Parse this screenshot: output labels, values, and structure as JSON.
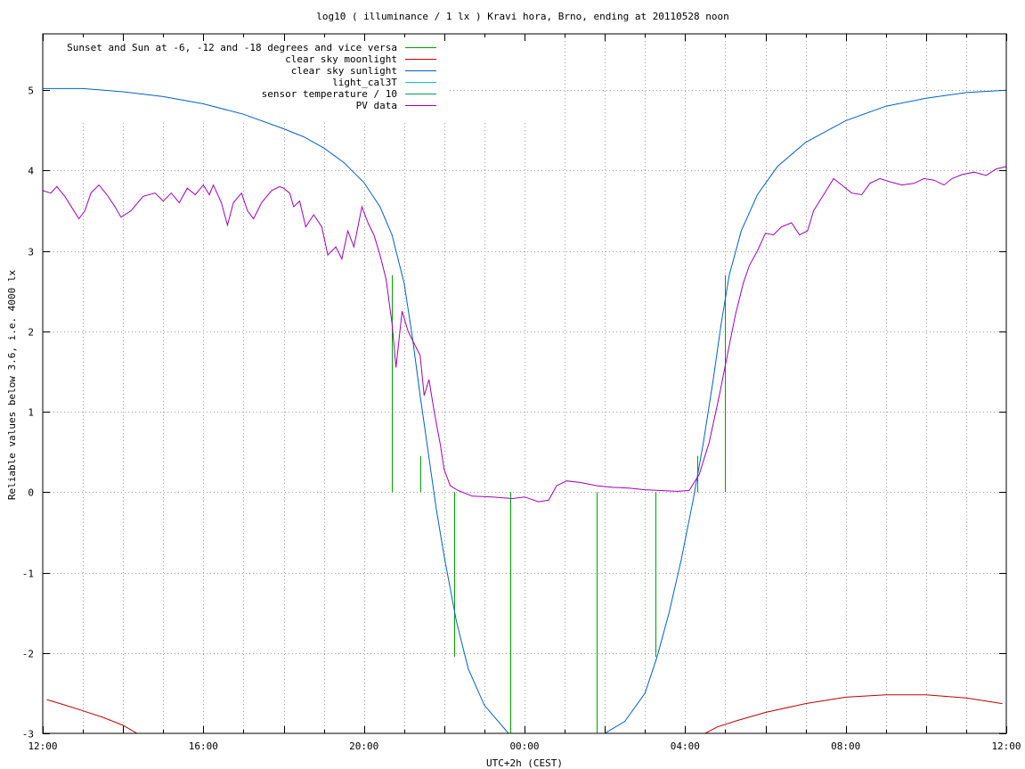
{
  "chart_data": {
    "type": "line",
    "title": "log10 ( illuminance / 1 lx ) Kravi hora, Brno, ending at 20110528 noon",
    "xlabel": "UTC+2h (CEST)",
    "ylabel": "Reliable values below 3.6, i.e. 4000 lx",
    "x_unit": "hours after 12:00",
    "xlim": [
      0,
      24
    ],
    "ylim": [
      -3,
      5.7
    ],
    "x_ticks": [
      {
        "x": 0,
        "label": "12:00"
      },
      {
        "x": 4,
        "label": "16:00"
      },
      {
        "x": 8,
        "label": "20:00"
      },
      {
        "x": 12,
        "label": "00:00"
      },
      {
        "x": 16,
        "label": "04:00"
      },
      {
        "x": 20,
        "label": "08:00"
      },
      {
        "x": 24,
        "label": "12:00"
      }
    ],
    "y_ticks": [
      {
        "y": 5,
        "label": "5"
      },
      {
        "y": 4,
        "label": "4"
      },
      {
        "y": 3,
        "label": "3"
      },
      {
        "y": 2,
        "label": "2"
      },
      {
        "y": 1,
        "label": "1"
      },
      {
        "y": 0,
        "label": "0"
      },
      {
        "y": -1,
        "label": "-1"
      },
      {
        "y": -2,
        "label": "-2"
      },
      {
        "y": -3,
        "label": "-3"
      }
    ],
    "grid": true,
    "legend_position": "top-left",
    "series": [
      {
        "name": "Sunset and Sun at -6, -12 and -18 degrees and vice versa",
        "color": "#00a000",
        "style": "impulses",
        "points": [
          [
            8.7,
            2.7
          ],
          [
            9.4,
            0.45
          ],
          [
            10.25,
            -2.05
          ],
          [
            11.65,
            -3.0
          ],
          [
            13.8,
            -3.0
          ],
          [
            15.25,
            -2.05
          ],
          [
            16.3,
            0.45
          ],
          [
            17.0,
            2.7
          ]
        ]
      },
      {
        "name": "clear sky moonlight",
        "color": "#c00000",
        "style": "line",
        "points": [
          [
            0.1,
            -2.58
          ],
          [
            0.5,
            -2.64
          ],
          [
            1.0,
            -2.72
          ],
          [
            1.5,
            -2.8
          ],
          [
            2.0,
            -2.9
          ],
          [
            2.35,
            -3.0
          ],
          [
            16.5,
            -3.0
          ],
          [
            16.8,
            -2.92
          ],
          [
            17.3,
            -2.84
          ],
          [
            18.0,
            -2.74
          ],
          [
            19.0,
            -2.63
          ],
          [
            20.0,
            -2.55
          ],
          [
            21.0,
            -2.52
          ],
          [
            22.0,
            -2.52
          ],
          [
            23.0,
            -2.56
          ],
          [
            23.9,
            -2.63
          ]
        ]
      },
      {
        "name": "clear sky sunlight",
        "color": "#0060d0",
        "style": "line",
        "points": [
          [
            0.0,
            5.02
          ],
          [
            1.0,
            5.02
          ],
          [
            2.0,
            4.98
          ],
          [
            3.0,
            4.92
          ],
          [
            4.0,
            4.83
          ],
          [
            5.0,
            4.7
          ],
          [
            6.0,
            4.52
          ],
          [
            6.5,
            4.42
          ],
          [
            7.0,
            4.28
          ],
          [
            7.5,
            4.1
          ],
          [
            8.0,
            3.85
          ],
          [
            8.4,
            3.55
          ],
          [
            8.7,
            3.2
          ],
          [
            9.0,
            2.6
          ],
          [
            9.2,
            1.95
          ],
          [
            9.4,
            1.2
          ],
          [
            9.6,
            0.5
          ],
          [
            9.8,
            -0.2
          ],
          [
            10.0,
            -0.8
          ],
          [
            10.3,
            -1.6
          ],
          [
            10.6,
            -2.2
          ],
          [
            11.0,
            -2.65
          ],
          [
            11.6,
            -3.0
          ],
          [
            14.0,
            -3.0
          ],
          [
            14.5,
            -2.85
          ],
          [
            15.0,
            -2.5
          ],
          [
            15.3,
            -2.05
          ],
          [
            15.6,
            -1.5
          ],
          [
            15.9,
            -0.85
          ],
          [
            16.2,
            -0.1
          ],
          [
            16.45,
            0.6
          ],
          [
            16.7,
            1.4
          ],
          [
            16.9,
            2.1
          ],
          [
            17.1,
            2.7
          ],
          [
            17.4,
            3.25
          ],
          [
            17.8,
            3.7
          ],
          [
            18.3,
            4.05
          ],
          [
            19.0,
            4.35
          ],
          [
            20.0,
            4.62
          ],
          [
            21.0,
            4.8
          ],
          [
            22.0,
            4.9
          ],
          [
            23.0,
            4.97
          ],
          [
            24.0,
            5.0
          ]
        ]
      },
      {
        "name": "light_cal3T",
        "color": "#00c8e0",
        "style": "line",
        "points": []
      },
      {
        "name": "sensor temperature / 10",
        "color": "#00a060",
        "style": "line",
        "points": []
      },
      {
        "name": "PV data",
        "color": "#a000c0",
        "style": "line",
        "points": [
          [
            0.0,
            3.75
          ],
          [
            0.2,
            3.72
          ],
          [
            0.35,
            3.8
          ],
          [
            0.55,
            3.68
          ],
          [
            0.75,
            3.52
          ],
          [
            0.9,
            3.4
          ],
          [
            1.05,
            3.5
          ],
          [
            1.2,
            3.72
          ],
          [
            1.4,
            3.82
          ],
          [
            1.6,
            3.7
          ],
          [
            1.8,
            3.55
          ],
          [
            1.95,
            3.42
          ],
          [
            2.2,
            3.5
          ],
          [
            2.5,
            3.68
          ],
          [
            2.8,
            3.72
          ],
          [
            3.0,
            3.62
          ],
          [
            3.2,
            3.72
          ],
          [
            3.4,
            3.6
          ],
          [
            3.6,
            3.78
          ],
          [
            3.8,
            3.7
          ],
          [
            4.0,
            3.82
          ],
          [
            4.15,
            3.7
          ],
          [
            4.25,
            3.82
          ],
          [
            4.45,
            3.6
          ],
          [
            4.6,
            3.32
          ],
          [
            4.75,
            3.6
          ],
          [
            4.95,
            3.72
          ],
          [
            5.1,
            3.5
          ],
          [
            5.25,
            3.4
          ],
          [
            5.45,
            3.6
          ],
          [
            5.7,
            3.75
          ],
          [
            5.9,
            3.8
          ],
          [
            6.0,
            3.78
          ],
          [
            6.15,
            3.72
          ],
          [
            6.25,
            3.55
          ],
          [
            6.4,
            3.62
          ],
          [
            6.55,
            3.3
          ],
          [
            6.75,
            3.45
          ],
          [
            6.95,
            3.3
          ],
          [
            7.1,
            2.95
          ],
          [
            7.3,
            3.05
          ],
          [
            7.45,
            2.9
          ],
          [
            7.6,
            3.25
          ],
          [
            7.75,
            3.05
          ],
          [
            7.95,
            3.55
          ],
          [
            8.1,
            3.35
          ],
          [
            8.25,
            3.2
          ],
          [
            8.4,
            2.95
          ],
          [
            8.55,
            2.65
          ],
          [
            8.7,
            2.1
          ],
          [
            8.8,
            1.55
          ],
          [
            8.95,
            2.25
          ],
          [
            9.1,
            2.0
          ],
          [
            9.25,
            1.85
          ],
          [
            9.4,
            1.7
          ],
          [
            9.5,
            1.2
          ],
          [
            9.62,
            1.4
          ],
          [
            9.75,
            1.0
          ],
          [
            9.9,
            0.6
          ],
          [
            10.0,
            0.28
          ],
          [
            10.15,
            0.08
          ],
          [
            10.35,
            0.02
          ],
          [
            10.7,
            -0.05
          ],
          [
            11.2,
            -0.06
          ],
          [
            11.7,
            -0.08
          ],
          [
            12.0,
            -0.06
          ],
          [
            12.35,
            -0.12
          ],
          [
            12.6,
            -0.1
          ],
          [
            12.8,
            0.08
          ],
          [
            13.05,
            0.14
          ],
          [
            13.4,
            0.12
          ],
          [
            13.8,
            0.08
          ],
          [
            14.2,
            0.06
          ],
          [
            14.6,
            0.05
          ],
          [
            15.0,
            0.03
          ],
          [
            15.4,
            0.02
          ],
          [
            15.8,
            0.01
          ],
          [
            16.1,
            0.02
          ],
          [
            16.35,
            0.22
          ],
          [
            16.6,
            0.62
          ],
          [
            16.85,
            1.2
          ],
          [
            17.05,
            1.7
          ],
          [
            17.25,
            2.2
          ],
          [
            17.45,
            2.6
          ],
          [
            17.6,
            2.82
          ],
          [
            17.8,
            3.0
          ],
          [
            18.0,
            3.22
          ],
          [
            18.2,
            3.2
          ],
          [
            18.4,
            3.3
          ],
          [
            18.65,
            3.35
          ],
          [
            18.85,
            3.2
          ],
          [
            19.05,
            3.25
          ],
          [
            19.2,
            3.5
          ],
          [
            19.45,
            3.7
          ],
          [
            19.7,
            3.9
          ],
          [
            19.9,
            3.82
          ],
          [
            20.15,
            3.72
          ],
          [
            20.4,
            3.7
          ],
          [
            20.6,
            3.84
          ],
          [
            20.85,
            3.9
          ],
          [
            21.1,
            3.86
          ],
          [
            21.4,
            3.82
          ],
          [
            21.7,
            3.84
          ],
          [
            21.95,
            3.9
          ],
          [
            22.2,
            3.88
          ],
          [
            22.45,
            3.82
          ],
          [
            22.65,
            3.9
          ],
          [
            22.9,
            3.95
          ],
          [
            23.2,
            3.98
          ],
          [
            23.5,
            3.94
          ],
          [
            23.75,
            4.02
          ],
          [
            24.0,
            4.05
          ]
        ]
      }
    ]
  }
}
